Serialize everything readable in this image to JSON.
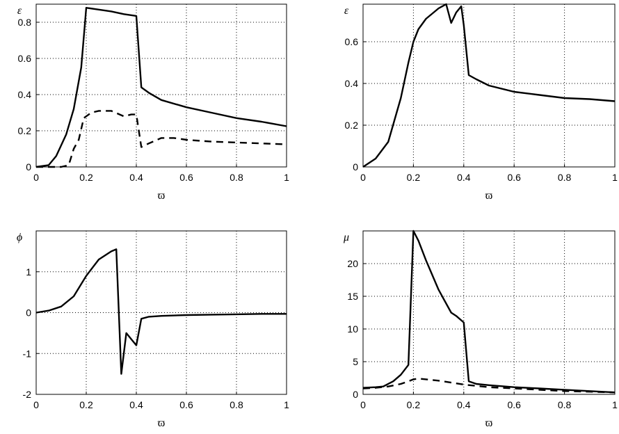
{
  "chart_data": [
    {
      "type": "line",
      "xlabel": "ϖ",
      "ylabel": "ε",
      "xlim": [
        0,
        1
      ],
      "ylim": [
        0,
        0.9
      ],
      "xticks": [
        "0",
        "0.2",
        "0.4",
        "0.6",
        "0.8",
        "1"
      ],
      "yticks": [
        "0",
        "0.2",
        "0.4",
        "0.6",
        "0.8"
      ],
      "grid": true,
      "series": [
        {
          "style": "solid",
          "x": [
            0,
            0.05,
            0.08,
            0.12,
            0.15,
            0.18,
            0.2,
            0.25,
            0.3,
            0.35,
            0.4,
            0.42,
            0.45,
            0.5,
            0.6,
            0.7,
            0.8,
            0.9,
            1.0
          ],
          "y": [
            0,
            0.01,
            0.06,
            0.18,
            0.32,
            0.55,
            0.88,
            0.87,
            0.86,
            0.845,
            0.835,
            0.44,
            0.41,
            0.37,
            0.33,
            0.3,
            0.27,
            0.25,
            0.225
          ]
        },
        {
          "style": "dashed",
          "x": [
            0,
            0.05,
            0.1,
            0.13,
            0.15,
            0.17,
            0.19,
            0.22,
            0.25,
            0.3,
            0.35,
            0.38,
            0.4,
            0.42,
            0.45,
            0.5,
            0.55,
            0.6,
            0.7,
            0.8,
            0.9,
            1.0
          ],
          "y": [
            0,
            0,
            0,
            0.01,
            0.1,
            0.15,
            0.27,
            0.3,
            0.31,
            0.31,
            0.28,
            0.29,
            0.29,
            0.11,
            0.13,
            0.16,
            0.16,
            0.15,
            0.14,
            0.135,
            0.13,
            0.125
          ]
        }
      ]
    },
    {
      "type": "line",
      "xlabel": "ϖ",
      "ylabel": "ε",
      "xlim": [
        0,
        1
      ],
      "ylim": [
        0,
        0.78
      ],
      "xticks": [
        "0",
        "0.2",
        "0.4",
        "0.6",
        "0.8",
        "1"
      ],
      "yticks": [
        "0",
        "0.2",
        "0.4",
        "0.6"
      ],
      "grid": true,
      "series": [
        {
          "style": "solid",
          "x": [
            0,
            0.05,
            0.1,
            0.15,
            0.18,
            0.2,
            0.22,
            0.25,
            0.28,
            0.3,
            0.33,
            0.35,
            0.37,
            0.39,
            0.4,
            0.42,
            0.45,
            0.5,
            0.6,
            0.7,
            0.8,
            0.9,
            1.0
          ],
          "y": [
            0,
            0.04,
            0.12,
            0.33,
            0.5,
            0.6,
            0.66,
            0.71,
            0.74,
            0.76,
            0.78,
            0.69,
            0.74,
            0.77,
            0.68,
            0.44,
            0.42,
            0.39,
            0.36,
            0.345,
            0.33,
            0.325,
            0.315
          ]
        }
      ]
    },
    {
      "type": "line",
      "xlabel": "ϖ",
      "ylabel": "ϕ",
      "xlim": [
        0,
        1
      ],
      "ylim": [
        -2,
        2
      ],
      "xticks": [
        "0",
        "0.2",
        "0.4",
        "0.6",
        "0.8",
        "1"
      ],
      "yticks": [
        "-2",
        "-1",
        "0",
        "1"
      ],
      "grid": true,
      "series": [
        {
          "style": "solid",
          "x": [
            0,
            0.05,
            0.1,
            0.15,
            0.2,
            0.25,
            0.3,
            0.32,
            0.34,
            0.36,
            0.38,
            0.4,
            0.42,
            0.45,
            0.5,
            0.6,
            0.7,
            0.8,
            0.9,
            1.0
          ],
          "y": [
            0,
            0.05,
            0.15,
            0.4,
            0.9,
            1.3,
            1.5,
            1.55,
            -1.5,
            -0.5,
            -0.65,
            -0.8,
            -0.15,
            -0.1,
            -0.08,
            -0.06,
            -0.05,
            -0.04,
            -0.03,
            -0.03
          ]
        }
      ]
    },
    {
      "type": "line",
      "xlabel": "ϖ",
      "ylabel": "μ",
      "xlim": [
        0,
        1
      ],
      "ylim": [
        0,
        25
      ],
      "xticks": [
        "0",
        "0.2",
        "0.4",
        "0.6",
        "0.8",
        "1"
      ],
      "yticks": [
        "0",
        "5",
        "10",
        "15",
        "20"
      ],
      "grid": true,
      "series": [
        {
          "style": "solid",
          "x": [
            0,
            0.05,
            0.08,
            0.12,
            0.15,
            0.18,
            0.2,
            0.22,
            0.25,
            0.3,
            0.35,
            0.37,
            0.4,
            0.42,
            0.45,
            0.5,
            0.6,
            0.7,
            0.8,
            0.9,
            1.0
          ],
          "y": [
            1,
            1.1,
            1.2,
            2,
            3,
            4.5,
            25,
            23.5,
            20.5,
            16,
            12.5,
            12,
            11,
            2,
            1.6,
            1.4,
            1.1,
            0.9,
            0.7,
            0.5,
            0.3
          ]
        },
        {
          "style": "dashed",
          "x": [
            0,
            0.05,
            0.1,
            0.15,
            0.18,
            0.2,
            0.22,
            0.25,
            0.3,
            0.35,
            0.4,
            0.45,
            0.5,
            0.6,
            0.7,
            0.8,
            0.9,
            1.0
          ],
          "y": [
            0.9,
            1,
            1.2,
            1.6,
            2,
            2.3,
            2.4,
            2.3,
            2.1,
            1.8,
            1.5,
            1.3,
            1.1,
            0.9,
            0.7,
            0.5,
            0.4,
            0.3
          ]
        }
      ]
    }
  ]
}
